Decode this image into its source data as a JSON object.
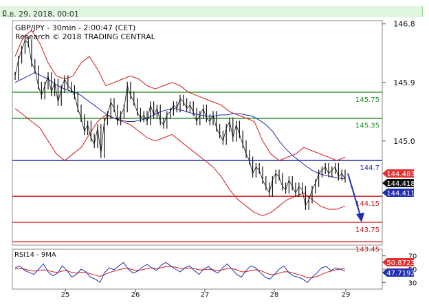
{
  "timestamp": "มิ.ย. 29, 2018, 00:01",
  "chart_data": {
    "type": "line",
    "title": "GBP/JPY - 30min - 2:00:47 (CET)",
    "subtitle": "Research © 2018 TRADING CENTRAL",
    "price_axis": {
      "ticks": [
        "146.8",
        "145.9",
        "145.0"
      ],
      "ylim": [
        143.4,
        146.85
      ]
    },
    "x_axis": {
      "ticks": [
        "25",
        "26",
        "27",
        "28",
        "29"
      ]
    },
    "levels": [
      {
        "value": 145.75,
        "label": "145.75",
        "color": "#1e8c1e"
      },
      {
        "value": 145.35,
        "label": "145.35",
        "color": "#1e8c1e"
      },
      {
        "value": 144.7,
        "label": "144.7",
        "color": "#1f2fb0"
      },
      {
        "value": 144.15,
        "label": "144.15",
        "color": "#d21a1a"
      },
      {
        "value": 143.75,
        "label": "143.75",
        "color": "#d21a1a"
      },
      {
        "value": 143.45,
        "label": "143.45",
        "color": "#d21a1a"
      }
    ],
    "price_tags": [
      {
        "value": 144.483,
        "label": "144.483",
        "color": "#e33030"
      },
      {
        "value": 144.418,
        "label": "144.418",
        "color": "#111111"
      },
      {
        "value": 144.411,
        "label": "144.411",
        "color": "#1f2fb0"
      }
    ],
    "price_series": [
      146.0,
      146.25,
      146.4,
      146.55,
      146.5,
      146.2,
      146.1,
      145.85,
      145.7,
      145.85,
      146.0,
      145.75,
      145.9,
      145.6,
      145.8,
      145.95,
      145.85,
      145.8,
      145.7,
      145.5,
      145.35,
      145.15,
      145.25,
      145.05,
      144.95,
      145.2,
      144.8,
      145.3,
      145.4,
      145.6,
      145.5,
      145.3,
      145.4,
      145.5,
      145.85,
      145.7,
      145.6,
      145.45,
      145.35,
      145.4,
      145.3,
      145.55,
      145.4,
      145.5,
      145.3,
      145.25,
      145.4,
      145.45,
      145.55,
      145.5,
      145.65,
      145.6,
      145.5,
      145.55,
      145.45,
      145.3,
      145.4,
      145.5,
      145.35,
      145.3,
      145.4,
      145.2,
      145.1,
      145.0,
      145.2,
      145.3,
      145.05,
      145.25,
      145.1,
      144.95,
      144.8,
      144.7,
      144.5,
      144.6,
      144.55,
      144.4,
      144.3,
      144.2,
      144.4,
      144.5,
      144.45,
      144.3,
      144.25,
      144.4,
      144.3,
      144.2,
      144.3,
      144.25,
      144.0,
      144.1,
      144.25,
      144.35,
      144.5,
      144.55,
      144.6,
      144.5,
      144.55,
      144.6,
      144.45,
      144.5,
      144.42
    ],
    "sma_series": [
      145.9,
      145.95,
      146.0,
      146.05,
      146.0,
      145.95,
      145.88,
      145.82,
      145.78,
      145.75,
      145.7,
      145.62,
      145.55,
      145.47,
      145.4,
      145.35,
      145.32,
      145.3,
      145.3,
      145.32,
      145.35,
      145.4,
      145.45,
      145.48,
      145.5,
      145.48,
      145.45,
      145.42,
      145.4,
      145.38,
      145.38,
      145.4,
      145.4,
      145.42,
      145.42,
      145.4,
      145.38,
      145.32,
      145.25,
      145.15,
      145.0,
      144.88,
      144.78,
      144.7,
      144.62,
      144.55,
      144.5,
      144.47,
      144.45,
      144.43,
      144.42
    ],
    "bands_upper": [
      146.3,
      146.6,
      146.7,
      146.5,
      146.2,
      146.0,
      145.95,
      146.0,
      146.2,
      146.3,
      146.1,
      145.85,
      145.9,
      145.95,
      146.0,
      145.95,
      145.85,
      145.8,
      145.85,
      145.9,
      145.85,
      145.75,
      145.7,
      145.65,
      145.6,
      145.55,
      145.45,
      145.4,
      145.35,
      145.3,
      145.0,
      144.8,
      144.7,
      144.75,
      144.8,
      144.9,
      144.85,
      144.8,
      144.75,
      144.7,
      144.75
    ],
    "bands_lower": [
      145.5,
      145.4,
      145.3,
      145.2,
      145.0,
      144.8,
      144.7,
      144.8,
      144.9,
      145.1,
      145.3,
      145.4,
      145.35,
      145.3,
      145.25,
      145.15,
      145.05,
      145.0,
      145.05,
      145.1,
      145.0,
      144.9,
      144.8,
      144.7,
      144.6,
      144.45,
      144.25,
      144.1,
      144.0,
      143.9,
      143.85,
      143.9,
      144.0,
      144.1,
      144.15,
      144.2,
      144.1,
      144.0,
      143.95,
      143.95,
      144.0
    ],
    "forecast": {
      "from": 144.5,
      "to": 143.75,
      "color": "#1f2fb0"
    },
    "rsi": {
      "title": "RSI14 - 9MA",
      "ticks": [
        "70",
        "50",
        "30"
      ],
      "ylim": [
        20,
        80
      ],
      "tags": [
        {
          "value": 50.8723,
          "label": "50.8723",
          "color": "#e33030"
        },
        {
          "value": 47.7192,
          "label": "47.7192",
          "color": "#1f2fb0"
        }
      ],
      "rsi_series": [
        52,
        55,
        48,
        45,
        42,
        50,
        58,
        46,
        40,
        44,
        55,
        48,
        38,
        42,
        50,
        46,
        38,
        35,
        30,
        45,
        52,
        49,
        55,
        60,
        50,
        44,
        47,
        53,
        57,
        52,
        48,
        56,
        60,
        55,
        50,
        46,
        52,
        55,
        48,
        42,
        50,
        54,
        48,
        44,
        52,
        58,
        50,
        42,
        38,
        48,
        55,
        52,
        45,
        38,
        35,
        42,
        50,
        55,
        45,
        40,
        38,
        35,
        30,
        38,
        44,
        52,
        54,
        48,
        52,
        50,
        47
      ],
      "ma_series": [
        50,
        51,
        50,
        48,
        47,
        48,
        49,
        48,
        46,
        45,
        47,
        48,
        45,
        44,
        45,
        45,
        43,
        41,
        39,
        42,
        45,
        47,
        49,
        51,
        51,
        49,
        48,
        49,
        51,
        52,
        51,
        52,
        54,
        54,
        53,
        51,
        51,
        52,
        51,
        49,
        49,
        50,
        49,
        48,
        49,
        51,
        51,
        49,
        46,
        46,
        48,
        49,
        48,
        45,
        42,
        42,
        44,
        46,
        46,
        44,
        42,
        40,
        37,
        37,
        39,
        42,
        45,
        47,
        49,
        50,
        51
      ]
    }
  }
}
